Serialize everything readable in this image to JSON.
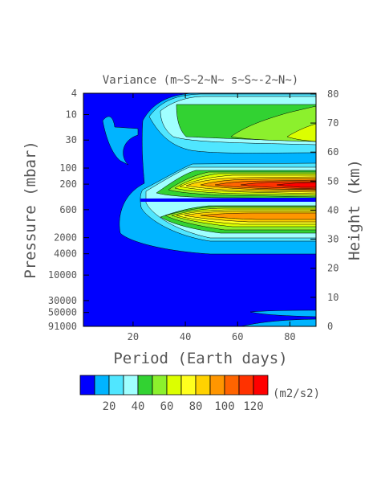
{
  "chart_data": {
    "type": "contour",
    "title": "Variance (m~S~2~N~ s~S~-2~N~)",
    "xlabel": "Period (Earth days)",
    "ylabel_left": "Pressure (mbar)",
    "ylabel_right": "Height (km)",
    "xlim": [
      1,
      90
    ],
    "x_ticks": [
      20,
      40,
      60,
      80
    ],
    "pressure_axis": {
      "scale": "log",
      "range": [
        4,
        91000
      ],
      "ticks": [
        "4",
        "10",
        "30",
        "100",
        "200",
        "600",
        "2000",
        "4000",
        "10000",
        "30000",
        "50000",
        "91000"
      ]
    },
    "height_axis": {
      "ticks": [
        "0",
        "10",
        "20",
        "30",
        "40",
        "50",
        "60",
        "70",
        "80"
      ]
    },
    "colorbar": {
      "unit": "(m2/s2)",
      "levels": [
        10,
        20,
        30,
        40,
        50,
        60,
        70,
        80,
        90,
        100,
        110,
        120
      ],
      "labels": [
        "20",
        "40",
        "60",
        "80",
        "100",
        "120"
      ],
      "colors": [
        "#0000ff",
        "#00b4ff",
        "#50e6ff",
        "#a0ffff",
        "#32d232",
        "#8cf02d",
        "#dcff00",
        "#ffff1e",
        "#ffd200",
        "#ff9600",
        "#ff6400",
        "#ff3200",
        "#ff0000"
      ]
    }
  }
}
